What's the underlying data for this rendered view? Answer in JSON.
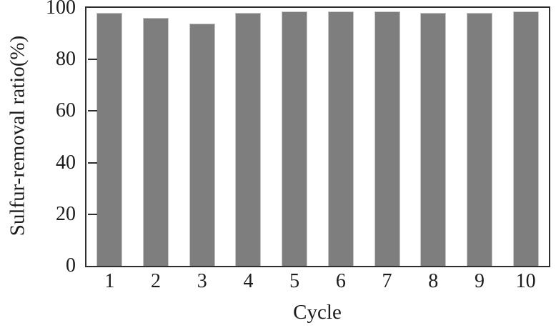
{
  "chart_data": {
    "type": "bar",
    "title": "",
    "xlabel": "Cycle",
    "ylabel": "Sulfur-removal ratio(%)",
    "categories": [
      "1",
      "2",
      "3",
      "4",
      "5",
      "6",
      "7",
      "8",
      "9",
      "10"
    ],
    "values": [
      98,
      96,
      94,
      98,
      98.5,
      98.5,
      98.5,
      98,
      98,
      98.5
    ],
    "ylim": [
      0,
      100
    ],
    "yticks": [
      0,
      20,
      40,
      60,
      80,
      100
    ],
    "ytick_labels": [
      "0",
      "20",
      "40",
      "60",
      "80",
      "100"
    ],
    "grid": false,
    "legend": null,
    "bar_color": "#7e7e7e",
    "bar_edge_color": "#c6c6c6",
    "frame_color": "#2e2e2e",
    "text_color": "#1c1c1c",
    "background_color": "#ffffff"
  }
}
